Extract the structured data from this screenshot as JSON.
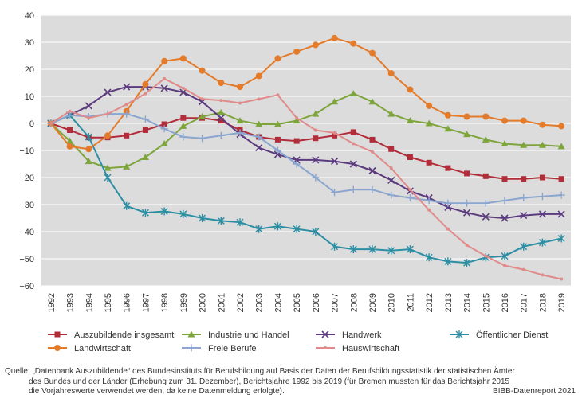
{
  "chart_data": {
    "type": "line",
    "title": "",
    "xlabel": "",
    "ylabel": "",
    "ylim": [
      -60,
      40
    ],
    "yticks": [
      40,
      30,
      20,
      10,
      0,
      -10,
      -20,
      -30,
      -40,
      -50,
      -60
    ],
    "grid": true,
    "background": "#dcdcdc",
    "categories": [
      "1992",
      "1993",
      "1994",
      "1995",
      "1996",
      "1997",
      "1998",
      "1999",
      "2000",
      "2001",
      "2002",
      "2003",
      "2004",
      "2005",
      "2006",
      "2007",
      "2008",
      "2009",
      "2010",
      "2011",
      "2012",
      "2013",
      "2014",
      "2015",
      "2016",
      "2017",
      "2018",
      "2019"
    ],
    "series": [
      {
        "name": "Auszubildende insgesamt",
        "color": "#b22d3a",
        "marker": "square",
        "values": [
          0,
          -2.5,
          -5.2,
          -5.2,
          -4.5,
          -2.5,
          -0.3,
          2,
          2,
          1,
          -2.5,
          -5,
          -6,
          -6.5,
          -5.5,
          -4.5,
          -3.2,
          -6,
          -9.5,
          -12.5,
          -14.5,
          -16.5,
          -18.5,
          -19.5,
          -20.5,
          -20.5,
          -20,
          -20.5
        ]
      },
      {
        "name": "Industrie und Handel",
        "color": "#7ea53c",
        "marker": "triangle",
        "values": [
          0,
          -6.5,
          -14,
          -16.5,
          -16,
          -12.5,
          -7.5,
          -1,
          2.5,
          4,
          1,
          -0.3,
          -0.3,
          1,
          3.5,
          8,
          11,
          8,
          3.5,
          1,
          0,
          -2,
          -4,
          -6,
          -7.5,
          -8,
          -8,
          -8.5
        ]
      },
      {
        "name": "Handwerk",
        "color": "#5c3a7e",
        "marker": "cross",
        "values": [
          0,
          3,
          6.5,
          11.5,
          13.5,
          13.5,
          13,
          11.5,
          8,
          2,
          -4,
          -9,
          -11.5,
          -13.5,
          -13.5,
          -14,
          -15,
          -17.5,
          -21,
          -25,
          -27.5,
          -31,
          -33,
          -34.5,
          -35,
          -34,
          -33.5,
          -33.5
        ]
      },
      {
        "name": "Öffentlicher Dienst",
        "color": "#2b8ea3",
        "marker": "asterisk",
        "values": [
          0,
          3,
          -5,
          -20,
          -30.5,
          -33,
          -32.5,
          -33.5,
          -35,
          -36,
          -36.5,
          -39,
          -38,
          -39,
          -40,
          -45.5,
          -46.5,
          -46.5,
          -47,
          -46.5,
          -49.5,
          -51,
          -51.5,
          -49.5,
          -49,
          -45.5,
          -44,
          -42.5
        ]
      },
      {
        "name": "Landwirtschaft",
        "color": "#e37b2a",
        "marker": "circle",
        "values": [
          0,
          -8.5,
          -9.5,
          -4.5,
          4.5,
          14.5,
          23,
          24,
          19.5,
          15,
          13.5,
          17.5,
          24,
          26.5,
          29,
          31.5,
          29.5,
          26,
          18.5,
          12.5,
          6.5,
          3,
          2.5,
          2.5,
          1,
          1,
          -0.5,
          -1
        ]
      },
      {
        "name": "Freie Berufe",
        "color": "#8aa5cf",
        "marker": "plus",
        "values": [
          0,
          3,
          2.5,
          3.5,
          3.5,
          1.5,
          -2,
          -5,
          -5.5,
          -4.5,
          -3.5,
          -5,
          -10,
          -15,
          -20,
          -25.5,
          -24.5,
          -24.5,
          -26.5,
          -27.5,
          -28.5,
          -29.5,
          -29.5,
          -29.5,
          -28.5,
          -27.5,
          -27,
          -26.5
        ]
      },
      {
        "name": "Hauswirtschaft",
        "color": "#e08a8a",
        "marker": "dot",
        "values": [
          0,
          4.5,
          2,
          3.5,
          7,
          11,
          16.5,
          13,
          9,
          8.5,
          7.5,
          9,
          10.5,
          2,
          -2.5,
          -3.5,
          -7.5,
          -10.5,
          -16.5,
          -24.5,
          -32,
          -39,
          -45,
          -49,
          -52.5,
          -54,
          -56,
          -57.5
        ]
      }
    ]
  },
  "footer": {
    "source_line1": "Quelle: „Datenbank Auszubildende“ des Bundesinstituts für Berufsbildung auf Basis der Daten der Berufsbildungsstatistik der statistischen Ämter",
    "source_line2": "des Bundes und der Länder (Erhebung zum 31. Dezember), Berichtsjahre 1992 bis 2019 (für Bremen mussten für das Berichtsjahr 2015",
    "source_line3": "die Vorjahreswerte verwendet werden, da keine Datenmeldung erfolgte).",
    "credit": "BIBB-Datenreport 2021"
  }
}
